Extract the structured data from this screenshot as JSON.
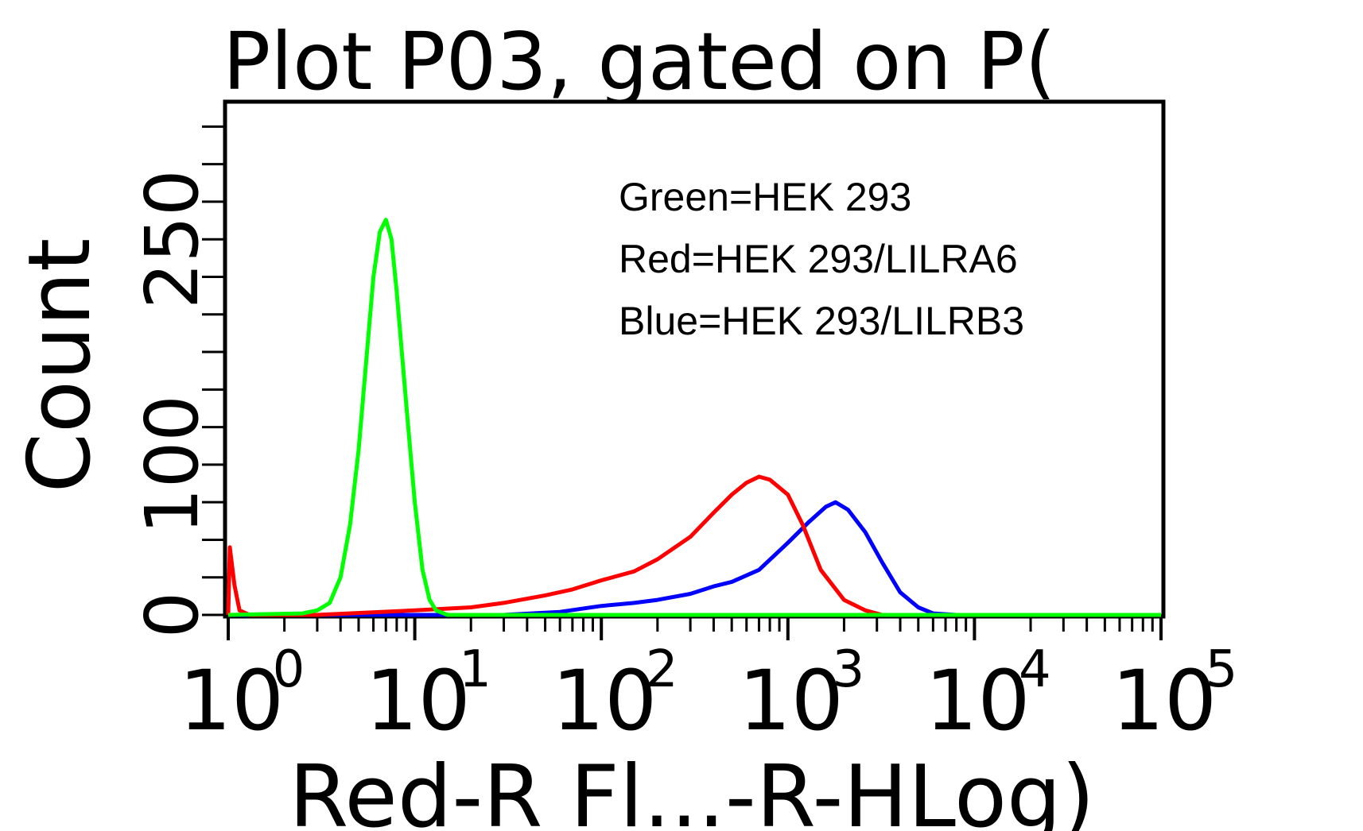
{
  "chart_data": {
    "type": "line",
    "title": "Plot P03, gated on P(",
    "xlabel": "Red-R Fl...-R-HLog)",
    "ylabel": "Count",
    "xscale": "log",
    "xlim": [
      1,
      100000
    ],
    "ylim": [
      0,
      340
    ],
    "x_ticks": [
      {
        "base": "10",
        "exp": "0"
      },
      {
        "base": "10",
        "exp": "1"
      },
      {
        "base": "10",
        "exp": "2"
      },
      {
        "base": "10",
        "exp": "3"
      },
      {
        "base": "10",
        "exp": "4"
      },
      {
        "base": "10",
        "exp": "5"
      }
    ],
    "y_ticks": [
      "0",
      "100",
      "250"
    ],
    "y_tick_values": [
      0,
      100,
      250
    ],
    "legend": {
      "placement": "top-right",
      "entries": [
        "Green=HEK 293",
        "Red=HEK 293/LILRA6",
        "Blue=HEK 293/LILRB3"
      ]
    },
    "series": [
      {
        "color": "#0000ff",
        "points": [
          [
            1,
            0
          ],
          [
            30,
            0
          ],
          [
            60,
            2
          ],
          [
            100,
            6
          ],
          [
            150,
            8
          ],
          [
            200,
            10
          ],
          [
            300,
            14
          ],
          [
            400,
            19
          ],
          [
            500,
            22
          ],
          [
            700,
            30
          ],
          [
            1000,
            48
          ],
          [
            1300,
            62
          ],
          [
            1600,
            72
          ],
          [
            1800,
            75
          ],
          [
            2100,
            70
          ],
          [
            2600,
            55
          ],
          [
            3200,
            35
          ],
          [
            4000,
            15
          ],
          [
            5000,
            5
          ],
          [
            6000,
            1
          ],
          [
            8000,
            0
          ],
          [
            100000,
            0
          ]
        ]
      },
      {
        "color": "#ff0000",
        "points": [
          [
            1,
            0
          ],
          [
            1.02,
            45
          ],
          [
            1.08,
            20
          ],
          [
            1.15,
            3
          ],
          [
            1.3,
            0
          ],
          [
            3,
            0
          ],
          [
            10,
            3
          ],
          [
            20,
            5
          ],
          [
            30,
            8
          ],
          [
            50,
            13
          ],
          [
            70,
            17
          ],
          [
            100,
            23
          ],
          [
            150,
            29
          ],
          [
            200,
            37
          ],
          [
            300,
            52
          ],
          [
            400,
            68
          ],
          [
            500,
            80
          ],
          [
            600,
            88
          ],
          [
            700,
            92
          ],
          [
            800,
            90
          ],
          [
            1000,
            80
          ],
          [
            1200,
            60
          ],
          [
            1500,
            30
          ],
          [
            2000,
            10
          ],
          [
            2600,
            3
          ],
          [
            3200,
            0
          ],
          [
            100000,
            0
          ]
        ]
      },
      {
        "color": "#00ff00",
        "points": [
          [
            1,
            0
          ],
          [
            2.5,
            1
          ],
          [
            3,
            3
          ],
          [
            3.5,
            8
          ],
          [
            4,
            25
          ],
          [
            4.5,
            60
          ],
          [
            5,
            110
          ],
          [
            5.5,
            170
          ],
          [
            6,
            225
          ],
          [
            6.5,
            255
          ],
          [
            7,
            263
          ],
          [
            7.5,
            250
          ],
          [
            8,
            215
          ],
          [
            9,
            140
          ],
          [
            10,
            75
          ],
          [
            11,
            30
          ],
          [
            12,
            10
          ],
          [
            13,
            3
          ],
          [
            15,
            0
          ],
          [
            100000,
            0
          ]
        ]
      }
    ]
  }
}
